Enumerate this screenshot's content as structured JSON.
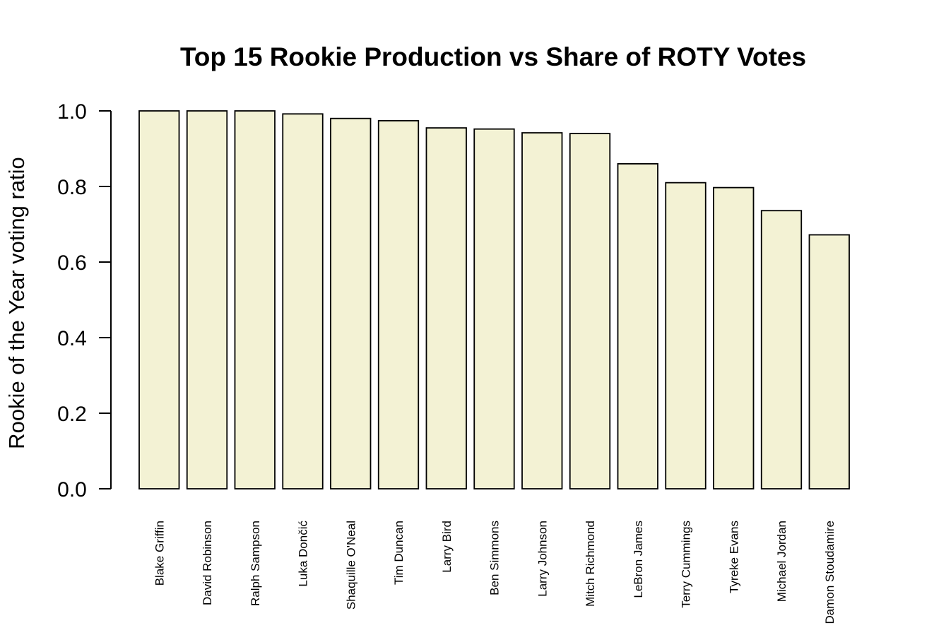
{
  "chart_data": {
    "type": "bar",
    "title": "Top 15 Rookie Production vs Share of ROTY Votes",
    "xlabel": "",
    "ylabel": "Rookie of the Year voting ratio",
    "categories": [
      "Blake Griffin",
      "David Robinson",
      "Ralph Sampson",
      "Luka Dončić",
      "Shaquille O'Neal",
      "Tim Duncan",
      "Larry Bird",
      "Ben Simmons",
      "Larry Johnson",
      "Mitch Richmond",
      "LeBron James",
      "Terry Cummings",
      "Tyreke Evans",
      "Michael Jordan",
      "Damon Stoudamire"
    ],
    "values": [
      1.0,
      1.0,
      1.0,
      0.992,
      0.98,
      0.974,
      0.955,
      0.952,
      0.942,
      0.94,
      0.86,
      0.81,
      0.797,
      0.736,
      0.672
    ],
    "ylim": [
      0,
      1.0
    ],
    "yticks": [
      "0.0",
      "0.2",
      "0.4",
      "0.6",
      "0.8",
      "1.0"
    ],
    "bar_color": "#f3f2d4",
    "bar_stroke": "#000000",
    "grid": false,
    "legend": "none"
  }
}
